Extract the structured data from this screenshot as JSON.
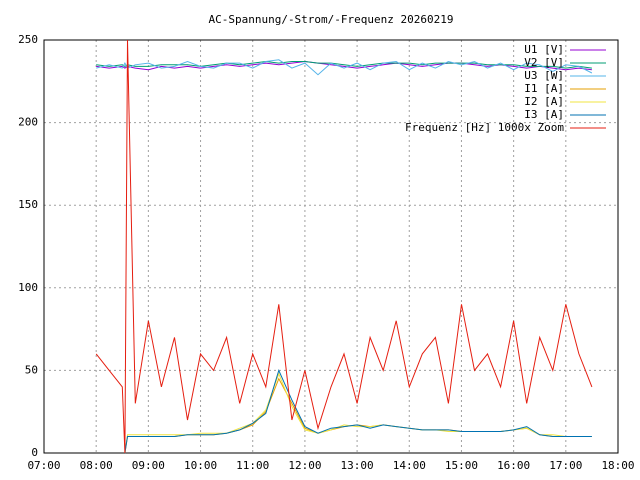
{
  "chart_data": {
    "type": "line",
    "title": "AC-Spannung/-Strom/-Frequenz 20260219",
    "x": [
      8.0,
      8.25,
      8.5,
      8.55,
      8.6,
      8.75,
      9.0,
      9.25,
      9.5,
      9.75,
      10.0,
      10.25,
      10.5,
      10.75,
      11.0,
      11.25,
      11.5,
      11.75,
      12.0,
      12.25,
      12.5,
      12.75,
      13.0,
      13.25,
      13.5,
      13.75,
      14.0,
      14.25,
      14.5,
      14.75,
      15.0,
      15.25,
      15.5,
      15.75,
      16.0,
      16.25,
      16.5,
      16.75,
      17.0,
      17.25,
      17.5
    ],
    "series": [
      {
        "name": "U1 [V]",
        "color": "#9400d3",
        "values": [
          234,
          233,
          234,
          233,
          234,
          233,
          232,
          234,
          233,
          234,
          233,
          234,
          235,
          234,
          235,
          236,
          235,
          236,
          237,
          236,
          235,
          234,
          233,
          234,
          235,
          236,
          235,
          234,
          235,
          236,
          236,
          235,
          234,
          235,
          234,
          233,
          234,
          233,
          232,
          233,
          232
        ]
      },
      {
        "name": "V2 [V]",
        "color": "#009e73",
        "values": [
          235,
          234,
          235,
          234,
          235,
          234,
          234,
          235,
          235,
          235,
          234,
          235,
          236,
          235,
          236,
          237,
          236,
          237,
          237,
          236,
          236,
          235,
          234,
          235,
          236,
          236,
          236,
          235,
          236,
          236,
          236,
          236,
          235,
          235,
          235,
          234,
          234,
          234,
          233,
          234,
          233
        ]
      },
      {
        "name": "U3 [W]",
        "color": "#56b4e9",
        "values": [
          233,
          235,
          233,
          236,
          233,
          235,
          236,
          233,
          234,
          237,
          234,
          233,
          236,
          236,
          233,
          237,
          238,
          233,
          236,
          229,
          236,
          233,
          236,
          232,
          236,
          237,
          232,
          236,
          233,
          237,
          235,
          237,
          233,
          236,
          232,
          236,
          235,
          231,
          235,
          234,
          230
        ]
      },
      {
        "name": "I1 [A]",
        "color": "#e69f00",
        "values": [
          null,
          null,
          null,
          0,
          10,
          10,
          10,
          10,
          10,
          11,
          11,
          11,
          12,
          14,
          17,
          25,
          45,
          30,
          15,
          12,
          14,
          16,
          17,
          16,
          17,
          16,
          15,
          14,
          14,
          14,
          13,
          13,
          13,
          13,
          14,
          15,
          11,
          10,
          10,
          10,
          10
        ]
      },
      {
        "name": "I2 [A]",
        "color": "#f0e442",
        "values": [
          null,
          null,
          null,
          0,
          11,
          11,
          11,
          11,
          11,
          11,
          12,
          12,
          12,
          15,
          18,
          26,
          48,
          28,
          14,
          12,
          14,
          17,
          16,
          16,
          17,
          16,
          15,
          14,
          14,
          13,
          13,
          13,
          13,
          13,
          14,
          15,
          11,
          11,
          10,
          10,
          10
        ]
      },
      {
        "name": "I3 [A]",
        "color": "#0072b2",
        "values": [
          null,
          null,
          null,
          0,
          10,
          10,
          10,
          10,
          10,
          11,
          11,
          11,
          12,
          14,
          18,
          24,
          50,
          32,
          16,
          12,
          15,
          16,
          17,
          15,
          17,
          16,
          15,
          14,
          14,
          14,
          13,
          13,
          13,
          13,
          14,
          16,
          11,
          10,
          10,
          10,
          10
        ]
      },
      {
        "name": "Frequenz [Hz] 1000x Zoom",
        "color": "#e51e10",
        "values": [
          60,
          50,
          40,
          0,
          250,
          30,
          80,
          40,
          70,
          20,
          60,
          50,
          70,
          30,
          60,
          40,
          90,
          20,
          50,
          15,
          40,
          60,
          30,
          70,
          50,
          80,
          40,
          60,
          70,
          30,
          90,
          50,
          60,
          40,
          80,
          30,
          70,
          50,
          90,
          60,
          40
        ]
      }
    ],
    "xlim": [
      7,
      18
    ],
    "xticks": [
      {
        "value": 7,
        "label": "07:00"
      },
      {
        "value": 8,
        "label": "08:00"
      },
      {
        "value": 9,
        "label": "09:00"
      },
      {
        "value": 10,
        "label": "10:00"
      },
      {
        "value": 11,
        "label": "11:00"
      },
      {
        "value": 12,
        "label": "12:00"
      },
      {
        "value": 13,
        "label": "13:00"
      },
      {
        "value": 14,
        "label": "14:00"
      },
      {
        "value": 15,
        "label": "15:00"
      },
      {
        "value": 16,
        "label": "16:00"
      },
      {
        "value": 17,
        "label": "17:00"
      },
      {
        "value": 18,
        "label": "18:00"
      }
    ],
    "ylim": [
      0,
      250
    ],
    "yticks": [
      0,
      50,
      100,
      150,
      200,
      250
    ],
    "grid": true,
    "legend": "top-right"
  }
}
